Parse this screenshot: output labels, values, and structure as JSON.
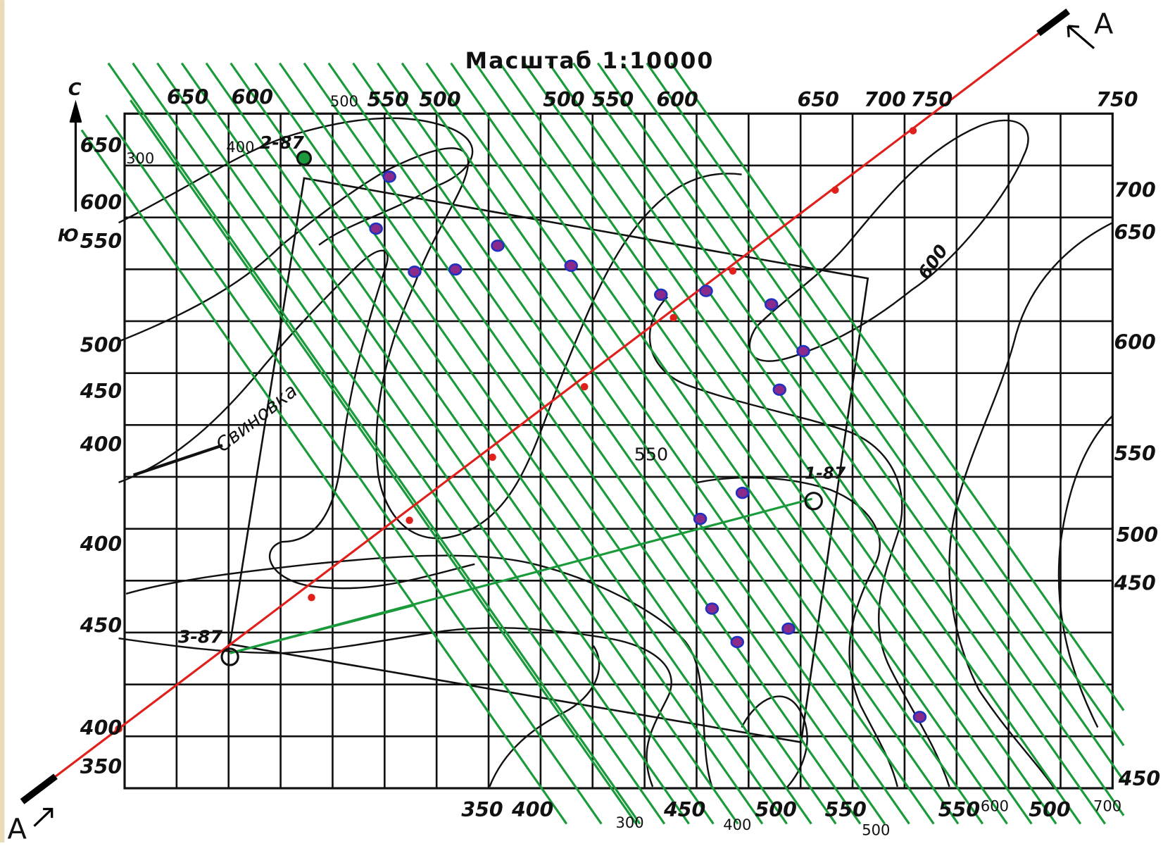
{
  "title": "Масштаб 1:10000",
  "section_label_start": "A",
  "section_label_end": "A",
  "north": "С",
  "south": "Ю",
  "wells": [
    "2-87",
    "1-87",
    "3-87"
  ],
  "river": "Свиновка",
  "top_labels": [
    "650",
    "600",
    "500",
    "550",
    "500",
    "500",
    "550",
    "600",
    "650",
    "700",
    "750",
    "750"
  ],
  "left_labels": [
    "650",
    "300",
    "400",
    "600",
    "550",
    "500",
    "450",
    "400",
    "400",
    "450",
    "400",
    "350"
  ],
  "right_labels": [
    "700",
    "650",
    "600",
    "550",
    "500",
    "450",
    "450"
  ],
  "bottom_labels": [
    "350",
    "400",
    "300",
    "450",
    "400",
    "500",
    "550",
    "500",
    "550",
    "600",
    "500",
    "700"
  ],
  "inner_labels": [
    "550",
    "600"
  ]
}
